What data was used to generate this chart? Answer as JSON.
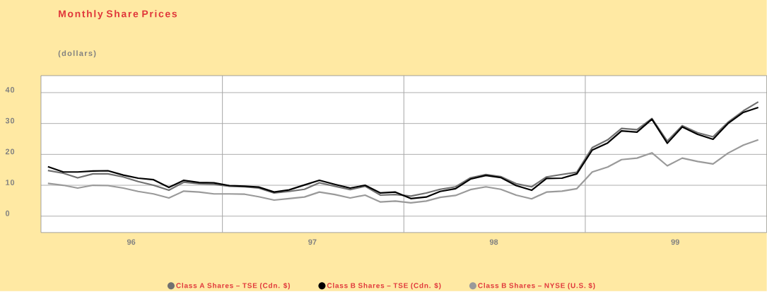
{
  "chart_data": {
    "type": "line",
    "title": "Monthly Share Prices",
    "subtitle": "(dollars)",
    "x": [
      "1996-01-15",
      "1996-02-15",
      "1996-03-15",
      "1996-04-15",
      "1996-05-15",
      "1996-06-15",
      "1996-07-15",
      "1996-08-15",
      "1996-09-15",
      "1996-10-15",
      "1996-11-15",
      "1996-12-15",
      "1997-01-15",
      "1997-02-15",
      "1997-03-15",
      "1997-04-15",
      "1997-05-15",
      "1997-06-15",
      "1997-07-15",
      "1997-08-15",
      "1997-09-15",
      "1997-10-15",
      "1997-11-15",
      "1997-12-15",
      "1998-01-15",
      "1998-02-15",
      "1998-03-15",
      "1998-04-15",
      "1998-05-15",
      "1998-06-15",
      "1998-07-15",
      "1998-08-15",
      "1998-09-15",
      "1998-10-15",
      "1998-11-15",
      "1998-12-15",
      "1999-01-15",
      "1999-02-15",
      "1999-03-15",
      "1999-04-15",
      "1999-05-15",
      "1999-06-15",
      "1999-07-15",
      "1999-08-15",
      "1999-09-15",
      "1999-10-15",
      "1999-11-15",
      "1999-12-15"
    ],
    "series": [
      {
        "name": "Class A Shares – TSE (Cdn. $)",
        "color": "#707070",
        "values": [
          14.8,
          13.9,
          12.4,
          13.7,
          13.7,
          12.7,
          11.2,
          10.0,
          8.4,
          11.0,
          10.5,
          10.3,
          9.7,
          9.5,
          9.1,
          7.5,
          8.0,
          8.7,
          10.8,
          9.7,
          8.6,
          9.7,
          6.8,
          7.0,
          6.5,
          7.5,
          8.7,
          9.5,
          12.4,
          13.5,
          12.8,
          10.5,
          9.5,
          12.7,
          13.5,
          14.2,
          22.2,
          24.7,
          28.4,
          28.0,
          31.6,
          24.3,
          29.3,
          27.0,
          25.7,
          30.4,
          34.1,
          37.0
        ]
      },
      {
        "name": "Class B Shares – TSE (Cdn. $)",
        "color": "#000000",
        "values": [
          16.0,
          14.3,
          14.3,
          14.6,
          14.7,
          13.3,
          12.3,
          11.8,
          9.3,
          11.6,
          10.9,
          10.8,
          9.9,
          9.7,
          9.4,
          7.8,
          8.5,
          10.1,
          11.6,
          10.3,
          9.1,
          10.0,
          7.5,
          7.8,
          5.7,
          6.2,
          8.0,
          8.9,
          12.0,
          13.2,
          12.5,
          9.9,
          8.4,
          12.2,
          12.3,
          13.7,
          21.4,
          23.7,
          27.6,
          27.2,
          31.4,
          23.6,
          28.9,
          26.5,
          24.9,
          30.0,
          33.6,
          35.2
        ]
      },
      {
        "name": "Class B Shares – NYSE (U.S. $)",
        "color": "#9a9a9a",
        "values": [
          10.6,
          10.0,
          9.1,
          10.0,
          9.9,
          9.1,
          8.0,
          7.2,
          5.9,
          8.1,
          7.8,
          7.2,
          7.2,
          7.1,
          6.3,
          5.2,
          5.7,
          6.2,
          7.8,
          7.0,
          5.9,
          6.8,
          4.6,
          4.9,
          4.3,
          4.9,
          6.1,
          6.7,
          8.6,
          9.5,
          8.7,
          6.8,
          5.6,
          7.8,
          8.1,
          8.9,
          14.3,
          15.9,
          18.3,
          18.8,
          20.5,
          16.3,
          18.8,
          17.7,
          16.9,
          20.4,
          23.0,
          24.7
        ]
      }
    ],
    "xlim": [
      "1996-01-01",
      "2000-01-01"
    ],
    "xticks": [
      {
        "value": "1996-07-01",
        "label": "96"
      },
      {
        "value": "1997-07-01",
        "label": "97"
      },
      {
        "value": "1998-07-01",
        "label": "98"
      },
      {
        "value": "1999-07-01",
        "label": "99"
      },
      {
        "value": "1997-01-01",
        "label": null
      },
      {
        "value": "1998-01-01",
        "label": null
      },
      {
        "value": "1999-01-01",
        "label": null
      }
    ],
    "ylim": [
      -5.3,
      45.5
    ],
    "yticks": [
      0,
      10,
      20,
      30,
      40
    ],
    "grid": true,
    "legend": "bottom",
    "marker": "none",
    "line_style": "solid"
  }
}
